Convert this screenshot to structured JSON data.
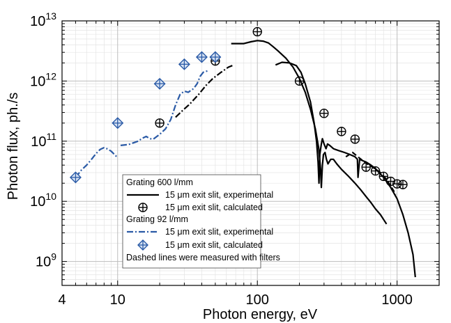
{
  "chart_data": {
    "type": "line",
    "x_scale": "log",
    "y_scale": "log",
    "xlim": [
      4,
      2000
    ],
    "ylim": [
      400000000,
      10000000000000
    ],
    "xlabel": "Photon energy, eV",
    "ylabel": "Photon flux, ph./s",
    "x_ticks": [
      {
        "value": 4,
        "label": "4"
      },
      {
        "value": 10,
        "label": "10"
      },
      {
        "value": 100,
        "label": "100"
      },
      {
        "value": 1000,
        "label": "1000"
      }
    ],
    "y_ticks": [
      {
        "value": 1000000000,
        "base": "10",
        "exp": "9"
      },
      {
        "value": 10000000000,
        "base": "10",
        "exp": "10"
      },
      {
        "value": 100000000000,
        "base": "10",
        "exp": "11"
      },
      {
        "value": 1000000000000,
        "base": "10",
        "exp": "12"
      },
      {
        "value": 10000000000000,
        "base": "10",
        "exp": "13"
      }
    ],
    "grid": "major and minor, light gray",
    "legend": {
      "position": "lower-center",
      "entries": [
        {
          "kind": "header",
          "text": "Grating 600 l/mm"
        },
        {
          "kind": "line",
          "text": "15 μm exit slit, experimental",
          "color": "#000000",
          "dash": "solid"
        },
        {
          "kind": "marker-circle",
          "text": "15 μm exit slit, calculated",
          "color": "#000000"
        },
        {
          "kind": "header",
          "text": "Grating 92 l/mm"
        },
        {
          "kind": "line",
          "text": "15 μm exit slit, experimental",
          "color": "#2a5aa6",
          "dash": "dashdot"
        },
        {
          "kind": "marker-diamond",
          "text": "15 μm exit slit, calculated",
          "color": "#2a5aa6"
        },
        {
          "kind": "note",
          "text": "Dashed lines were measured with filters"
        }
      ]
    },
    "series": [
      {
        "group": "Grating 92 l/mm",
        "kind": "experimental",
        "color": "#2a5aa6",
        "dash": "dashdot",
        "points": [
          [
            5,
            25000000000.0
          ],
          [
            5.5,
            33000000000.0
          ],
          [
            6,
            40000000000.0
          ],
          [
            6.5,
            50000000000.0
          ],
          [
            7,
            62000000000.0
          ],
          [
            7.5,
            73000000000.0
          ],
          [
            8,
            78000000000.0
          ],
          [
            8.5,
            74000000000.0
          ],
          [
            9,
            68000000000.0
          ],
          [
            9.5,
            60000000000.0
          ],
          [
            10,
            53000000000.0
          ]
        ]
      },
      {
        "group": "Grating 92 l/mm",
        "kind": "experimental",
        "color": "#2a5aa6",
        "dash": "dashdot",
        "points": [
          [
            10.5,
            85000000000.0
          ],
          [
            12,
            88000000000.0
          ],
          [
            14,
            100000000000.0
          ],
          [
            15,
            112000000000.0
          ],
          [
            16,
            120000000000.0
          ],
          [
            17,
            110000000000.0
          ],
          [
            18,
            108000000000.0
          ],
          [
            20,
            130000000000.0
          ],
          [
            22,
            160000000000.0
          ],
          [
            24,
            230000000000.0
          ],
          [
            26,
            400000000000.0
          ],
          [
            28,
            600000000000.0
          ],
          [
            30,
            680000000000.0
          ],
          [
            32,
            650000000000.0
          ],
          [
            35,
            750000000000.0
          ],
          [
            37,
            900000000000.0
          ],
          [
            39,
            1200000000000.0
          ],
          [
            41,
            1400000000000.0
          ],
          [
            43,
            1450000000000.0
          ],
          [
            45,
            1500000000000.0
          ]
        ]
      },
      {
        "group": "Grating 600 l/mm",
        "kind": "experimental",
        "color": "#000000",
        "dash": "dashdot",
        "points": [
          [
            26,
            250000000000.0
          ],
          [
            29,
            320000000000.0
          ],
          [
            33,
            420000000000.0
          ],
          [
            38,
            600000000000.0
          ],
          [
            43,
            850000000000.0
          ],
          [
            48,
            1100000000000.0
          ],
          [
            55,
            1400000000000.0
          ],
          [
            62,
            1700000000000.0
          ],
          [
            68,
            1850000000000.0
          ]
        ]
      },
      {
        "group": "Grating 600 l/mm",
        "kind": "experimental",
        "color": "#000000",
        "dash": "solid",
        "points": [
          [
            65,
            4200000000000.0
          ],
          [
            70,
            4200000000000.0
          ],
          [
            80,
            4200000000000.0
          ],
          [
            90,
            4500000000000.0
          ],
          [
            100,
            4700000000000.0
          ],
          [
            110,
            4600000000000.0
          ],
          [
            120,
            4300000000000.0
          ],
          [
            130,
            3700000000000.0
          ],
          [
            140,
            3200000000000.0
          ],
          [
            160,
            2400000000000.0
          ],
          [
            180,
            1700000000000.0
          ],
          [
            200,
            1100000000000.0
          ],
          [
            220,
            650000000000.0
          ],
          [
            240,
            340000000000.0
          ],
          [
            260,
            160000000000.0
          ],
          [
            275,
            75000000000.0
          ],
          [
            283,
            35000000000.0
          ],
          [
            287,
            17000000000.0
          ],
          [
            292,
            40000000000.0
          ],
          [
            297,
            60000000000.0
          ],
          [
            305,
            65000000000.0
          ],
          [
            312,
            50000000000.0
          ],
          [
            320,
            42000000000.0
          ],
          [
            335,
            50000000000.0
          ],
          [
            350,
            50000000000.0
          ],
          [
            370,
            42000000000.0
          ],
          [
            400,
            34000000000.0
          ],
          [
            450,
            26000000000.0
          ],
          [
            500,
            20000000000.0
          ],
          [
            550,
            15500000000.0
          ],
          [
            600,
            12000000000.0
          ],
          [
            650,
            9500000000.0
          ],
          [
            700,
            7500000000.0
          ],
          [
            760,
            6000000000.0
          ],
          [
            800,
            5000000000.0
          ],
          [
            840,
            4200000000.0
          ]
        ]
      },
      {
        "group": "Grating 600 l/mm",
        "kind": "experimental",
        "color": "#000000",
        "dash": "solid",
        "points": [
          [
            135,
            1850000000000.0
          ],
          [
            150,
            2050000000000.0
          ],
          [
            170,
            2000000000000.0
          ],
          [
            190,
            1800000000000.0
          ],
          [
            205,
            1400000000000.0
          ],
          [
            220,
            900000000000.0
          ],
          [
            240,
            450000000000.0
          ],
          [
            255,
            200000000000.0
          ],
          [
            265,
            100000000000.0
          ],
          [
            272,
            45000000000.0
          ],
          [
            276,
            20000000000.0
          ],
          [
            280,
            60000000000.0
          ],
          [
            287,
            90000000000.0
          ],
          [
            292,
            110000000000.0
          ],
          [
            300,
            90000000000.0
          ],
          [
            310,
            75000000000.0
          ],
          [
            318,
            90000000000.0
          ],
          [
            330,
            85000000000.0
          ],
          [
            350,
            75000000000.0
          ],
          [
            380,
            70000000000.0
          ],
          [
            420,
            65000000000.0
          ],
          [
            460,
            60000000000.0
          ],
          [
            500,
            55000000000.0
          ],
          [
            520,
            50000000000.0
          ],
          [
            525,
            25000000000.0
          ],
          [
            530,
            32000000000.0
          ],
          [
            540,
            50000000000.0
          ],
          [
            560,
            48000000000.0
          ],
          [
            600,
            45000000000.0
          ],
          [
            650,
            40000000000.0
          ],
          [
            700,
            35000000000.0
          ],
          [
            800,
            25000000000.0
          ],
          [
            900,
            17000000000.0
          ],
          [
            1000,
            11000000000.0
          ],
          [
            1100,
            6000000000.0
          ],
          [
            1200,
            3000000000.0
          ],
          [
            1300,
            1300000000.0
          ],
          [
            1350,
            550000000.0
          ]
        ]
      },
      {
        "group": "Grating 600 l/mm",
        "kind": "experimental",
        "color": "#000000",
        "dash": "dash",
        "points": [
          [
            430,
            55000000000.0
          ],
          [
            480,
            65000000000.0
          ],
          [
            540,
            52000000000.0
          ],
          [
            600,
            43000000000.0
          ],
          [
            680,
            36000000000.0
          ],
          [
            760,
            30000000000.0
          ],
          [
            830,
            24000000000.0
          ],
          [
            900,
            18000000000.0
          ],
          [
            980,
            13000000000.0
          ]
        ]
      },
      {
        "group": "Grating 600 l/mm",
        "kind": "calculated",
        "marker": "circle-plus",
        "color": "#000000",
        "points": [
          [
            20,
            200000000000.0
          ],
          [
            50,
            2150000000000.0
          ],
          [
            100,
            6600000000000.0
          ],
          [
            200,
            1000000000000.0
          ],
          [
            300,
            290000000000.0
          ],
          [
            400,
            145000000000.0
          ],
          [
            500,
            108000000000.0
          ],
          [
            600,
            37000000000.0
          ],
          [
            700,
            32000000000.0
          ],
          [
            800,
            26000000000.0
          ],
          [
            900,
            21500000000.0
          ],
          [
            1000,
            19500000000.0
          ],
          [
            1100,
            19000000000.0
          ]
        ]
      },
      {
        "group": "Grating 92 l/mm",
        "kind": "calculated",
        "marker": "diamond-plus",
        "color": "#2a5aa6",
        "points": [
          [
            5,
            25000000000.0
          ],
          [
            10,
            200000000000.0
          ],
          [
            20,
            900000000000.0
          ],
          [
            30,
            1900000000000.0
          ],
          [
            40,
            2500000000000.0
          ],
          [
            50,
            2500000000000.0
          ]
        ]
      }
    ]
  }
}
